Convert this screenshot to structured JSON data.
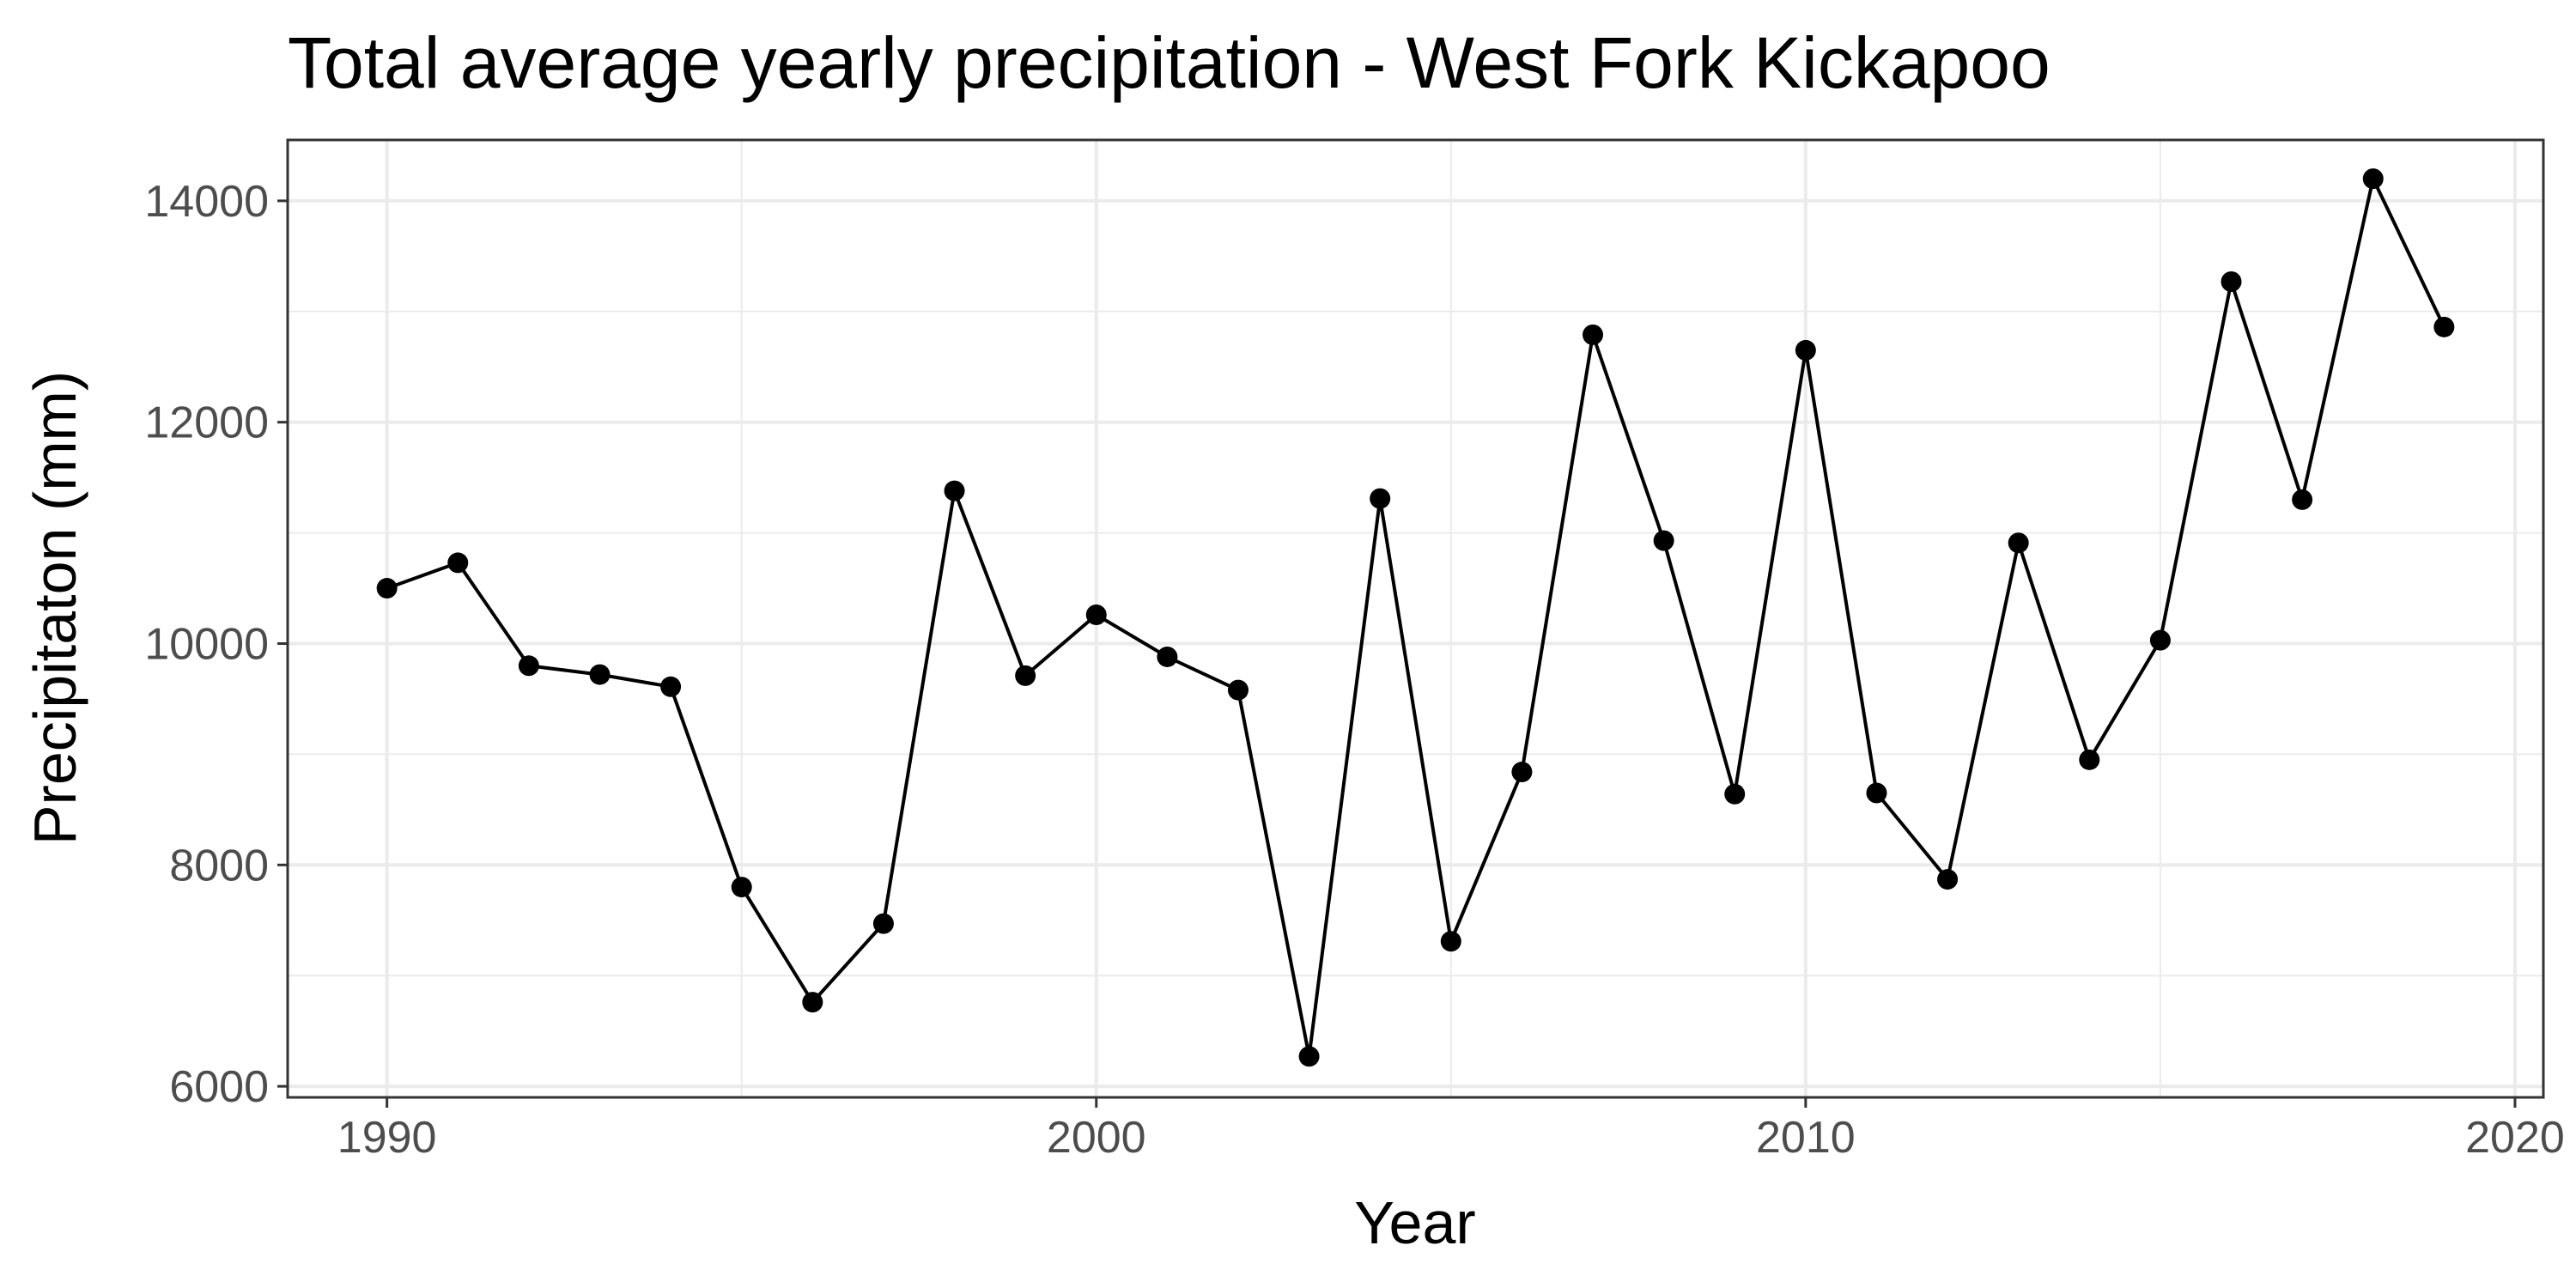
{
  "chart_data": {
    "type": "line",
    "title": "Total average yearly precipitation - West Fork Kickapoo",
    "xlabel": "Year",
    "ylabel": "Precipitaton (mm)",
    "xlim": [
      1988.6,
      2020.4
    ],
    "ylim": [
      5900,
      14550
    ],
    "x_ticks": [
      1990,
      2000,
      2010,
      2020
    ],
    "x_tick_labels": [
      "1990",
      "2000",
      "2010",
      "2020"
    ],
    "x_minor_ticks": [
      1995,
      2005,
      2015
    ],
    "y_ticks": [
      6000,
      8000,
      10000,
      12000,
      14000
    ],
    "y_tick_labels": [
      "6000",
      "8000",
      "10000",
      "12000",
      "14000"
    ],
    "y_minor_ticks": [
      7000,
      9000,
      11000,
      13000
    ],
    "grid": true,
    "series": [
      {
        "x": [
          1990,
          1991,
          1992,
          1993,
          1994,
          1995,
          1996,
          1997,
          1998,
          1999,
          2000,
          2001,
          2002,
          2003,
          2004,
          2005,
          2006,
          2007,
          2008,
          2009,
          2010,
          2011,
          2012,
          2013,
          2014,
          2015,
          2016,
          2017,
          2018,
          2019
        ],
        "y": [
          10500,
          10730,
          9800,
          9720,
          9610,
          7800,
          6760,
          7470,
          11380,
          9710,
          10260,
          9880,
          9580,
          6270,
          11310,
          7310,
          8840,
          12790,
          10930,
          8640,
          12650,
          8650,
          7870,
          10910,
          8950,
          10030,
          13270,
          11300,
          14200,
          12860
        ],
        "color": "#000000"
      }
    ]
  }
}
